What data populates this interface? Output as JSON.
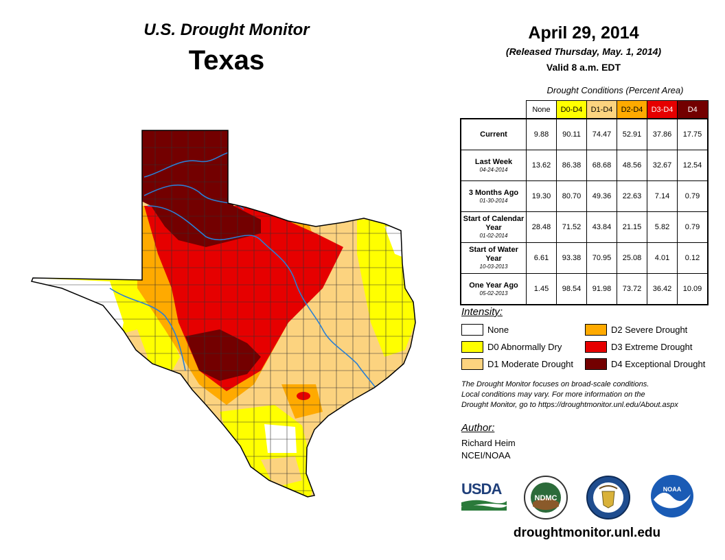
{
  "header": {
    "supertitle": "U.S. Drought Monitor",
    "region": "Texas",
    "date": "April 29, 2014",
    "released": "(Released Thursday, May. 1, 2014)",
    "valid": "Valid 8 a.m. EDT"
  },
  "table": {
    "caption": "Drought Conditions (Percent Area)",
    "columns": [
      {
        "label": "None",
        "color": "#ffffff",
        "text_color": "#000000"
      },
      {
        "label": "D0-D4",
        "color": "#ffff00",
        "text_color": "#000000"
      },
      {
        "label": "D1-D4",
        "color": "#fcd37f",
        "text_color": "#000000"
      },
      {
        "label": "D2-D4",
        "color": "#ffaa00",
        "text_color": "#000000"
      },
      {
        "label": "D3-D4",
        "color": "#e60000",
        "text_color": "#ffffff"
      },
      {
        "label": "D4",
        "color": "#730000",
        "text_color": "#ffffff"
      }
    ],
    "rows": [
      {
        "label": "Current",
        "date": "",
        "values": [
          "9.88",
          "90.11",
          "74.47",
          "52.91",
          "37.86",
          "17.75"
        ]
      },
      {
        "label": "Last Week",
        "date": "04-24-2014",
        "values": [
          "13.62",
          "86.38",
          "68.68",
          "48.56",
          "32.67",
          "12.54"
        ]
      },
      {
        "label": "3 Months Ago",
        "date": "01-30-2014",
        "values": [
          "19.30",
          "80.70",
          "49.36",
          "22.63",
          "7.14",
          "0.79"
        ]
      },
      {
        "label": "Start of Calendar Year",
        "date": "01-02-2014",
        "values": [
          "28.48",
          "71.52",
          "43.84",
          "21.15",
          "5.82",
          "0.79"
        ]
      },
      {
        "label": "Start of Water Year",
        "date": "10-03-2013",
        "values": [
          "6.61",
          "93.38",
          "70.95",
          "25.08",
          "4.01",
          "0.12"
        ]
      },
      {
        "label": "One Year Ago",
        "date": "05-02-2013",
        "values": [
          "1.45",
          "98.54",
          "91.98",
          "73.72",
          "36.42",
          "10.09"
        ]
      }
    ]
  },
  "legend": {
    "title": "Intensity:",
    "items": [
      {
        "label": "None",
        "color": "#ffffff"
      },
      {
        "label": "D0 Abnormally Dry",
        "color": "#ffff00"
      },
      {
        "label": "D1 Moderate Drought",
        "color": "#fcd37f"
      },
      {
        "label": "D2 Severe Drought",
        "color": "#ffaa00"
      },
      {
        "label": "D3 Extreme Drought",
        "color": "#e60000"
      },
      {
        "label": "D4 Exceptional Drought",
        "color": "#730000"
      }
    ]
  },
  "note": {
    "line1": "The Drought Monitor focuses on broad-scale conditions.",
    "line2": "Local conditions may vary. For more information on the",
    "line3": "Drought Monitor, go to https://droughtmonitor.unl.edu/About.aspx"
  },
  "author": {
    "title": "Author:",
    "name": "Richard Heim",
    "org": "NCEI/NOAA"
  },
  "logos": {
    "usda": "USDA",
    "ndmc": "NDMC",
    "noaa": "NOAA"
  },
  "footer": {
    "url": "droughtmonitor.unl.edu"
  }
}
